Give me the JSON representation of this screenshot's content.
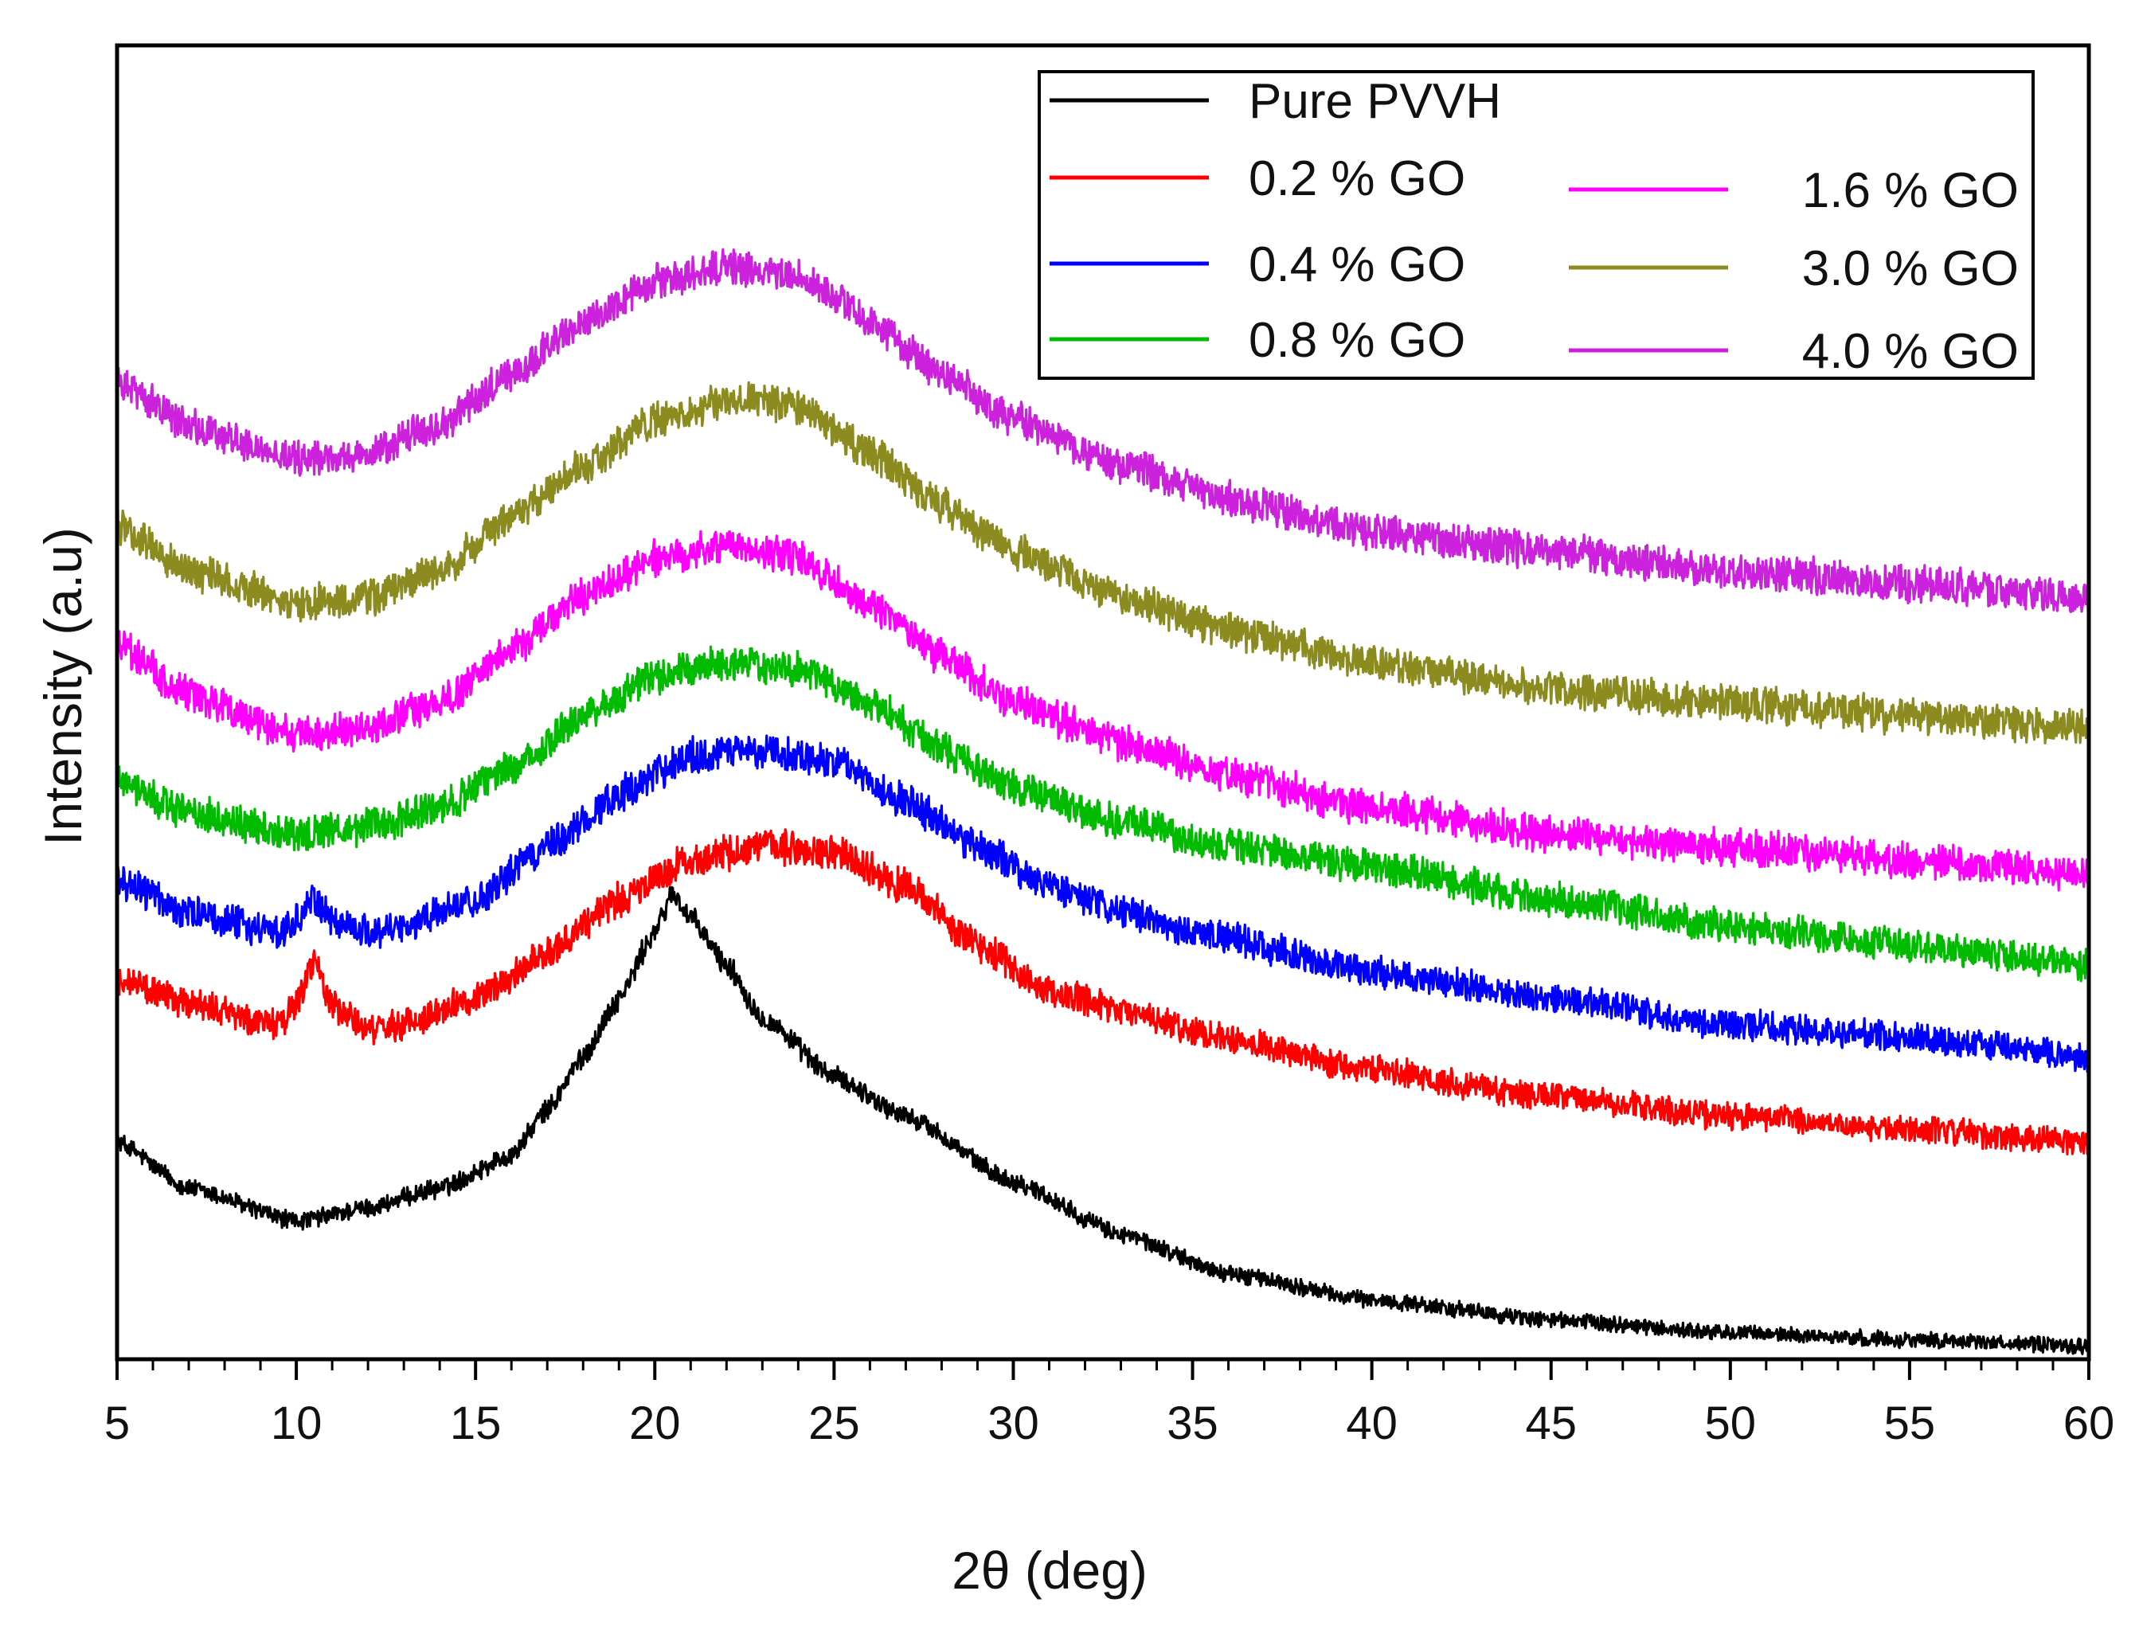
{
  "chart_data": {
    "type": "line",
    "title": "",
    "xlabel": "2θ (deg)",
    "ylabel": "Intensity (a.u)",
    "xlim": [
      5,
      60
    ],
    "ylim": [
      0,
      100
    ],
    "xticks": [
      5,
      10,
      15,
      20,
      25,
      30,
      35,
      40,
      45,
      50,
      55,
      60
    ],
    "xtick_labels": [
      "5",
      "10",
      "15",
      "20",
      "25",
      "30",
      "35",
      "40",
      "45",
      "50",
      "55",
      "60"
    ],
    "yticks_shown": false,
    "grid": false,
    "legend_position": "top-right",
    "series": [
      {
        "name": "Pure PVVH",
        "color": "#000000",
        "noise": 0.9,
        "x": [
          5,
          7,
          10,
          12,
          14,
          16,
          17,
          18,
          19,
          20,
          20.5,
          21,
          22,
          23,
          25,
          27,
          30,
          33,
          36,
          40,
          45,
          50,
          55,
          60
        ],
        "y": [
          16.5,
          13,
          10.5,
          11.5,
          13,
          15.5,
          19,
          23,
          27.5,
          32.5,
          35.5,
          33.5,
          30,
          26,
          21.5,
          18.5,
          13.5,
          9.5,
          6.5,
          4.5,
          3,
          2,
          1.5,
          1
        ]
      },
      {
        "name": "0.2 % GO",
        "color": "#ff0000",
        "noise": 1.2,
        "x": [
          5,
          7,
          9.5,
          10,
          10.5,
          11,
          12,
          13,
          15,
          17,
          19,
          21,
          23,
          25,
          27,
          29,
          31,
          33,
          35,
          40,
          45,
          50,
          55,
          60
        ],
        "y": [
          29,
          27,
          25.5,
          27,
          30.5,
          27,
          25,
          25.5,
          27.5,
          31,
          35,
          38,
          39,
          38.5,
          36,
          31.5,
          28,
          26.5,
          25,
          22,
          20,
          18.5,
          17.5,
          16.5
        ]
      },
      {
        "name": "0.4 % GO",
        "color": "#0000ff",
        "noise": 1.2,
        "x": [
          5,
          7,
          9.5,
          10,
          10.5,
          11,
          12,
          13,
          15,
          17,
          19,
          21,
          23,
          25,
          27,
          29,
          31,
          33,
          35,
          40,
          45,
          50,
          55,
          60
        ],
        "y": [
          36.5,
          34,
          32.5,
          33.5,
          35,
          33.5,
          32.5,
          33,
          35,
          39,
          43,
          46,
          46.5,
          45.5,
          42.5,
          39,
          36,
          34,
          32.5,
          29.5,
          27.5,
          25.5,
          24.5,
          23
        ]
      },
      {
        "name": "0.8 % GO",
        "color": "#00bb00",
        "noise": 1.2,
        "x": [
          5,
          7,
          10,
          12,
          14,
          16,
          18,
          20,
          22,
          24,
          26,
          28,
          30,
          33,
          36,
          40,
          45,
          50,
          55,
          60
        ],
        "y": [
          44,
          41.5,
          40,
          40.5,
          42,
          45,
          49,
          52,
          53,
          52.5,
          50,
          46.5,
          43.5,
          41,
          39,
          37.5,
          35,
          33,
          31.5,
          30
        ]
      },
      {
        "name": "1.6 % GO",
        "color": "#ff00ff",
        "noise": 1.2,
        "x": [
          5,
          7,
          10,
          12,
          14,
          16,
          18,
          20,
          22,
          24,
          26,
          28,
          30,
          33,
          36,
          40,
          45,
          50,
          55,
          60
        ],
        "y": [
          54.5,
          50.5,
          47.5,
          48,
          50,
          54,
          58,
          61,
          62,
          61,
          57.5,
          53.5,
          50,
          47,
          44.5,
          42,
          40,
          39,
          38,
          37
        ]
      },
      {
        "name": "3.0 % GO",
        "color": "#8b8b1f",
        "noise": 1.2,
        "x": [
          5,
          7,
          10,
          12,
          14,
          16,
          18,
          20,
          22,
          24,
          26,
          28,
          30,
          33,
          36,
          40,
          45,
          50,
          55,
          60
        ],
        "y": [
          63.5,
          60,
          57.5,
          58,
          60,
          64,
          68,
          71.5,
          73,
          72.5,
          69,
          65,
          61.5,
          58,
          55.5,
          53,
          51,
          50,
          49,
          48
        ]
      },
      {
        "name": "4.0 % GO",
        "color": "#cc22dd",
        "noise": 1.2,
        "x": [
          5,
          7,
          10,
          12,
          14,
          16,
          18,
          20,
          22,
          24,
          26,
          28,
          30,
          33,
          36,
          40,
          45,
          50,
          55,
          60
        ],
        "y": [
          74.5,
          71,
          68.5,
          69,
          71,
          75,
          79,
          82,
          83,
          82.5,
          79,
          75,
          71.5,
          68,
          65.5,
          63,
          61.5,
          60,
          59,
          58
        ]
      }
    ]
  }
}
